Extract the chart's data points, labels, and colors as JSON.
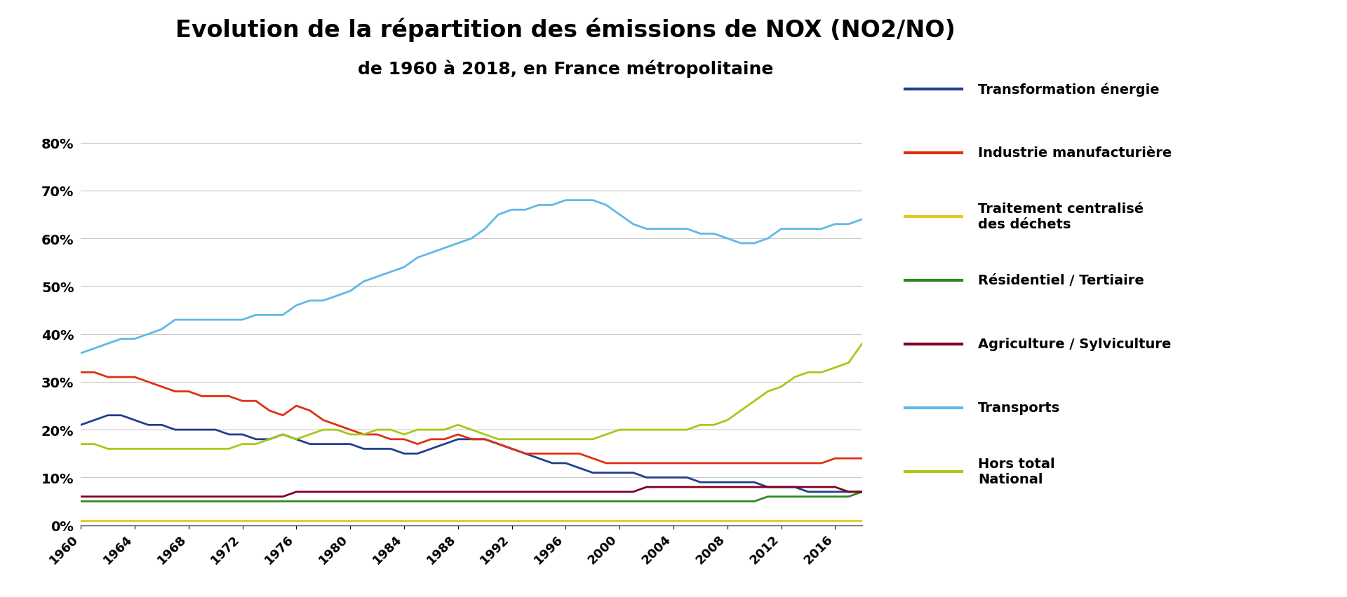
{
  "title": "Evolution de la répartition des émissions de NOX (NO2/NO)",
  "subtitle": "de 1960 à 2018, en France métropolitaine",
  "years": [
    1960,
    1961,
    1962,
    1963,
    1964,
    1965,
    1966,
    1967,
    1968,
    1969,
    1970,
    1971,
    1972,
    1973,
    1974,
    1975,
    1976,
    1977,
    1978,
    1979,
    1980,
    1981,
    1982,
    1983,
    1984,
    1985,
    1986,
    1987,
    1988,
    1989,
    1990,
    1991,
    1992,
    1993,
    1994,
    1995,
    1996,
    1997,
    1998,
    1999,
    2000,
    2001,
    2002,
    2003,
    2004,
    2005,
    2006,
    2007,
    2008,
    2009,
    2010,
    2011,
    2012,
    2013,
    2014,
    2015,
    2016,
    2017,
    2018
  ],
  "series": {
    "Transformation énergie": {
      "color": "#1f3f8f",
      "data": [
        21,
        22,
        23,
        23,
        22,
        21,
        21,
        20,
        20,
        20,
        20,
        19,
        19,
        18,
        18,
        19,
        18,
        17,
        17,
        17,
        17,
        16,
        16,
        16,
        15,
        15,
        16,
        17,
        18,
        18,
        18,
        17,
        16,
        15,
        14,
        13,
        13,
        12,
        11,
        11,
        11,
        11,
        10,
        10,
        10,
        10,
        9,
        9,
        9,
        9,
        9,
        8,
        8,
        8,
        7,
        7,
        7,
        7,
        7
      ]
    },
    "Industrie manufacturière": {
      "color": "#e03010",
      "data": [
        32,
        32,
        31,
        31,
        31,
        30,
        29,
        28,
        28,
        27,
        27,
        27,
        26,
        26,
        24,
        23,
        25,
        24,
        22,
        21,
        20,
        19,
        19,
        18,
        18,
        17,
        18,
        18,
        19,
        18,
        18,
        17,
        16,
        15,
        15,
        15,
        15,
        15,
        14,
        13,
        13,
        13,
        13,
        13,
        13,
        13,
        13,
        13,
        13,
        13,
        13,
        13,
        13,
        13,
        13,
        13,
        14,
        14,
        14
      ]
    },
    "Traitement centralisé\ndes déchets": {
      "color": "#e8c820",
      "data": [
        1,
        1,
        1,
        1,
        1,
        1,
        1,
        1,
        1,
        1,
        1,
        1,
        1,
        1,
        1,
        1,
        1,
        1,
        1,
        1,
        1,
        1,
        1,
        1,
        1,
        1,
        1,
        1,
        1,
        1,
        1,
        1,
        1,
        1,
        1,
        1,
        1,
        1,
        1,
        1,
        1,
        1,
        1,
        1,
        1,
        1,
        1,
        1,
        1,
        1,
        1,
        1,
        1,
        1,
        1,
        1,
        1,
        1,
        1
      ]
    },
    "Résidentiel / Tertiaire": {
      "color": "#2e8b20",
      "data": [
        5,
        5,
        5,
        5,
        5,
        5,
        5,
        5,
        5,
        5,
        5,
        5,
        5,
        5,
        5,
        5,
        5,
        5,
        5,
        5,
        5,
        5,
        5,
        5,
        5,
        5,
        5,
        5,
        5,
        5,
        5,
        5,
        5,
        5,
        5,
        5,
        5,
        5,
        5,
        5,
        5,
        5,
        5,
        5,
        5,
        5,
        5,
        5,
        5,
        5,
        5,
        6,
        6,
        6,
        6,
        6,
        6,
        6,
        7
      ]
    },
    "Agriculture / Sylviculture": {
      "color": "#800020",
      "data": [
        6,
        6,
        6,
        6,
        6,
        6,
        6,
        6,
        6,
        6,
        6,
        6,
        6,
        6,
        6,
        6,
        7,
        7,
        7,
        7,
        7,
        7,
        7,
        7,
        7,
        7,
        7,
        7,
        7,
        7,
        7,
        7,
        7,
        7,
        7,
        7,
        7,
        7,
        7,
        7,
        7,
        7,
        8,
        8,
        8,
        8,
        8,
        8,
        8,
        8,
        8,
        8,
        8,
        8,
        8,
        8,
        8,
        7,
        7
      ]
    },
    "Transports": {
      "color": "#60b8e8",
      "data": [
        36,
        37,
        38,
        39,
        39,
        40,
        41,
        43,
        43,
        43,
        43,
        43,
        43,
        44,
        44,
        44,
        46,
        47,
        47,
        48,
        49,
        51,
        52,
        53,
        54,
        56,
        57,
        58,
        59,
        60,
        62,
        65,
        66,
        66,
        67,
        67,
        68,
        68,
        68,
        67,
        65,
        63,
        62,
        62,
        62,
        62,
        61,
        61,
        60,
        59,
        59,
        60,
        62,
        62,
        62,
        62,
        63,
        63,
        64
      ]
    },
    "Hors total\nNational": {
      "color": "#a8c818",
      "data": [
        17,
        17,
        16,
        16,
        16,
        16,
        16,
        16,
        16,
        16,
        16,
        16,
        17,
        17,
        18,
        19,
        18,
        19,
        20,
        20,
        19,
        19,
        20,
        20,
        19,
        20,
        20,
        20,
        21,
        20,
        19,
        18,
        18,
        18,
        18,
        18,
        18,
        18,
        18,
        19,
        20,
        20,
        20,
        20,
        20,
        20,
        21,
        21,
        22,
        24,
        26,
        28,
        29,
        31,
        32,
        32,
        33,
        34,
        38
      ]
    }
  },
  "yticks": [
    0.0,
    0.1,
    0.2,
    0.3,
    0.4,
    0.5,
    0.6,
    0.7,
    0.8
  ],
  "ytick_labels": [
    "0%",
    "10%",
    "20%",
    "30%",
    "40%",
    "50%",
    "60%",
    "70%",
    "80%"
  ],
  "xticks": [
    1960,
    1964,
    1968,
    1972,
    1976,
    1980,
    1984,
    1988,
    1992,
    1996,
    2000,
    2004,
    2008,
    2012,
    2016
  ],
  "background_color": "#ffffff",
  "grid_color": "#c8c8c8",
  "title_fontsize": 24,
  "subtitle_fontsize": 18,
  "legend_order": [
    "Transformation énergie",
    "Industrie manufacturière",
    "Traitement centralisé\ndes déchets",
    "Résidentiel / Tertiaire",
    "Agriculture / Sylviculture",
    "Transports",
    "Hors total\nNational"
  ]
}
